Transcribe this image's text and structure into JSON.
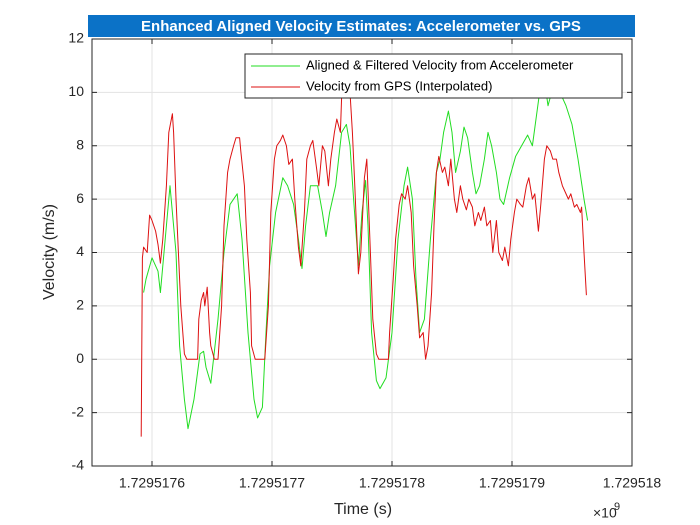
{
  "chart_data": {
    "type": "line",
    "title": "Enhanced Aligned Velocity Estimates: Accelerometer vs. GPS",
    "xlabel": "Time (s)",
    "ylabel": "Velocity (m/s)",
    "x_exponent": {
      "base": "×10",
      "power": "9"
    },
    "xlim": [
      1729517550,
      1729518000
    ],
    "xticks": [
      {
        "value": 1729517600,
        "label": "1.7295176"
      },
      {
        "value": 1729517700,
        "label": "1.7295177"
      },
      {
        "value": 1729517800,
        "label": "1.7295178"
      },
      {
        "value": 1729517900,
        "label": "1.7295179"
      },
      {
        "value": 1729518000,
        "label": "1.729518"
      }
    ],
    "ylim": [
      -4,
      12
    ],
    "yticks": [
      -4,
      -2,
      0,
      2,
      4,
      6,
      8,
      10,
      12
    ],
    "grid": true,
    "legend": "top-right",
    "series": [
      {
        "name": "Aligned & Filtered Velocity from Accelerometer",
        "color": "#22dd22",
        "x": [
          1729517593,
          1729517595,
          1729517600,
          1729517605,
          1729517607,
          1729517610,
          1729517615,
          1729517620,
          1729517623,
          1729517627,
          1729517630,
          1729517635,
          1729517640,
          1729517643,
          1729517645,
          1729517649,
          1729517655,
          1729517660,
          1729517665,
          1729517671,
          1729517675,
          1729517680,
          1729517685,
          1729517688,
          1729517692,
          1729517695,
          1729517698,
          1729517703,
          1729517709,
          1729517713,
          1729517718,
          1729517722,
          1729517725,
          1729517728,
          1729517732,
          1729517738,
          1729517742,
          1729517745,
          1729517748,
          1729517753,
          1729517758,
          1729517762,
          1729517765,
          1729517768,
          1729517772,
          1729517775,
          1729517778,
          1729517780,
          1729517783,
          1729517787,
          1729517790,
          1729517795,
          1729517800,
          1729517805,
          1729517810,
          1729517813,
          1729517817,
          1729517820,
          1729517823,
          1729517827,
          1729517832,
          1729517837,
          1729517840,
          1729517843,
          1729517847,
          1729517850,
          1729517853,
          1729517857,
          1729517860,
          1729517863,
          1729517867,
          1729517870,
          1729517873,
          1729517877,
          1729517880,
          1729517883,
          1729517887,
          1729517890,
          1729517893,
          1729517898,
          1729517903,
          1729517908,
          1729517913,
          1729517917,
          1729517920,
          1729517923,
          1729517927,
          1729517930,
          1729517933,
          1729517937,
          1729517940,
          1729517945,
          1729517950,
          1729517955,
          1729517960,
          1729517963
        ],
        "values": [
          2.5,
          3.0,
          3.8,
          3.3,
          2.5,
          4.0,
          6.5,
          4.0,
          0.5,
          -1.5,
          -2.6,
          -1.5,
          0.2,
          0.3,
          -0.3,
          -0.9,
          1.5,
          4.0,
          5.8,
          6.2,
          4.5,
          1.0,
          -1.5,
          -2.2,
          -1.8,
          1.0,
          3.5,
          5.5,
          6.8,
          6.5,
          5.8,
          4.5,
          3.4,
          5.0,
          6.5,
          6.5,
          5.5,
          4.6,
          5.5,
          6.5,
          8.5,
          8.8,
          8.0,
          6.0,
          3.5,
          5.5,
          6.7,
          5.0,
          1.0,
          -0.8,
          -1.1,
          -0.7,
          1.0,
          4.5,
          6.5,
          7.2,
          6.0,
          3.0,
          1.0,
          1.5,
          4.5,
          7.0,
          7.5,
          8.5,
          9.3,
          8.5,
          7.0,
          7.8,
          8.7,
          8.3,
          7.0,
          6.2,
          6.5,
          7.5,
          8.5,
          8.0,
          7.0,
          6.0,
          5.8,
          6.8,
          7.6,
          8.0,
          8.4,
          8.0,
          9.0,
          10.0,
          10.5,
          9.5,
          10.0,
          10.3,
          10.0,
          9.5,
          8.8,
          7.5,
          6.0,
          5.2
        ]
      },
      {
        "name": "Velocity from GPS (Interpolated)",
        "color": "#dd1111",
        "x": [
          1729517591,
          1729517592,
          1729517593,
          1729517596,
          1729517598,
          1729517600,
          1729517603,
          1729517605,
          1729517607,
          1729517609,
          1729517612,
          1729517614,
          1729517617,
          1729517618,
          1729517620,
          1729517622,
          1729517624,
          1729517627,
          1729517629,
          1729517633,
          1729517638,
          1729517639,
          1729517641,
          1729517643,
          1729517644,
          1729517646,
          1729517648,
          1729517649,
          1729517652,
          1729517655,
          1729517658,
          1729517660,
          1729517663,
          1729517665,
          1729517668,
          1729517670,
          1729517673,
          1729517674,
          1729517677,
          1729517679,
          1729517682,
          1729517683,
          1729517686,
          1729517694,
          1729517697,
          1729517699,
          1729517702,
          1729517704,
          1729517707,
          1729517709,
          1729517712,
          1729517714,
          1729517717,
          1729517719,
          1729517722,
          1729517724,
          1729517727,
          1729517729,
          1729517732,
          1729517734,
          1729517737,
          1729517739,
          1729517742,
          1729517744,
          1729517747,
          1729517749,
          1729517752,
          1729517754,
          1729517757,
          1729517758,
          1729517760,
          1729517763,
          1729517765,
          1729517767,
          1729517769,
          1729517772,
          1729517774,
          1729517777,
          1729517779,
          1729517782,
          1729517784,
          1729517787,
          1729517789,
          1729517797,
          1729517798,
          1729517801,
          1729517803,
          1729517806,
          1729517808,
          1729517811,
          1729517813,
          1729517816,
          1729517818,
          1729517821,
          1729517823,
          1729517826,
          1729517828,
          1729517830,
          1729517833,
          1729517835,
          1729517837,
          1729517839,
          1729517842,
          1729517844,
          1729517847,
          1729517849,
          1729517852,
          1729517854,
          1729517857,
          1729517859,
          1729517862,
          1729517864,
          1729517867,
          1729517869,
          1729517872,
          1729517874,
          1729517877,
          1729517879,
          1729517882,
          1729517884,
          1729517887,
          1729517889,
          1729517892,
          1729517894,
          1729517897,
          1729517899,
          1729517902,
          1729517904,
          1729517907,
          1729517909,
          1729517912,
          1729517914,
          1729517917,
          1729517919,
          1729517922,
          1729517924,
          1729517927,
          1729517929,
          1729517932,
          1729517934,
          1729517937,
          1729517939,
          1729517942,
          1729517944,
          1729517947,
          1729517949,
          1729517952,
          1729517954,
          1729517957,
          1729517958,
          1729517960,
          1729517962
        ],
        "values": [
          -2.9,
          3.8,
          4.2,
          4.0,
          5.4,
          5.2,
          4.8,
          4.3,
          3.6,
          4.5,
          6.5,
          8.5,
          9.2,
          8.5,
          6.0,
          4.0,
          2.0,
          0.2,
          0,
          0,
          0,
          1.5,
          2.2,
          2.5,
          2.0,
          2.7,
          1.0,
          0.5,
          0,
          0,
          2.0,
          5.0,
          7.0,
          7.5,
          8.0,
          8.3,
          8.3,
          7.8,
          6.5,
          4.5,
          2.5,
          0.5,
          0,
          0,
          2.0,
          5.5,
          7.5,
          8.0,
          8.2,
          8.4,
          8.0,
          7.3,
          7.5,
          6.0,
          4.2,
          3.5,
          5.5,
          7.5,
          8.0,
          8.2,
          7.2,
          6.5,
          8.0,
          7.8,
          6.5,
          7.5,
          8.5,
          9.0,
          8.5,
          9.8,
          10.0,
          10.2,
          10.0,
          8.5,
          6.5,
          3.2,
          4.0,
          6.8,
          7.5,
          4.0,
          1.5,
          0.2,
          0,
          0,
          1.0,
          3.0,
          4.5,
          5.8,
          6.2,
          6.0,
          6.5,
          5.5,
          3.5,
          2.0,
          0.8,
          1.0,
          0,
          0.5,
          2.5,
          5.0,
          7.0,
          7.6,
          7.0,
          7.2,
          6.5,
          7.5,
          6.0,
          5.5,
          6.5,
          6.0,
          5.6,
          6.0,
          5.7,
          5.0,
          5.5,
          5.2,
          5.7,
          5.0,
          5.2,
          4.0,
          5.2,
          4.0,
          3.7,
          4.2,
          3.5,
          4.5,
          5.5,
          6.0,
          5.8,
          5.7,
          6.5,
          6.8,
          6.0,
          6.2,
          4.8,
          5.8,
          7.5,
          8.0,
          7.8,
          7.5,
          7.5,
          7.0,
          6.5,
          6.3,
          6.0,
          6.2,
          5.7,
          5.8,
          5.5,
          5.7,
          4.0,
          2.4
        ]
      }
    ]
  }
}
